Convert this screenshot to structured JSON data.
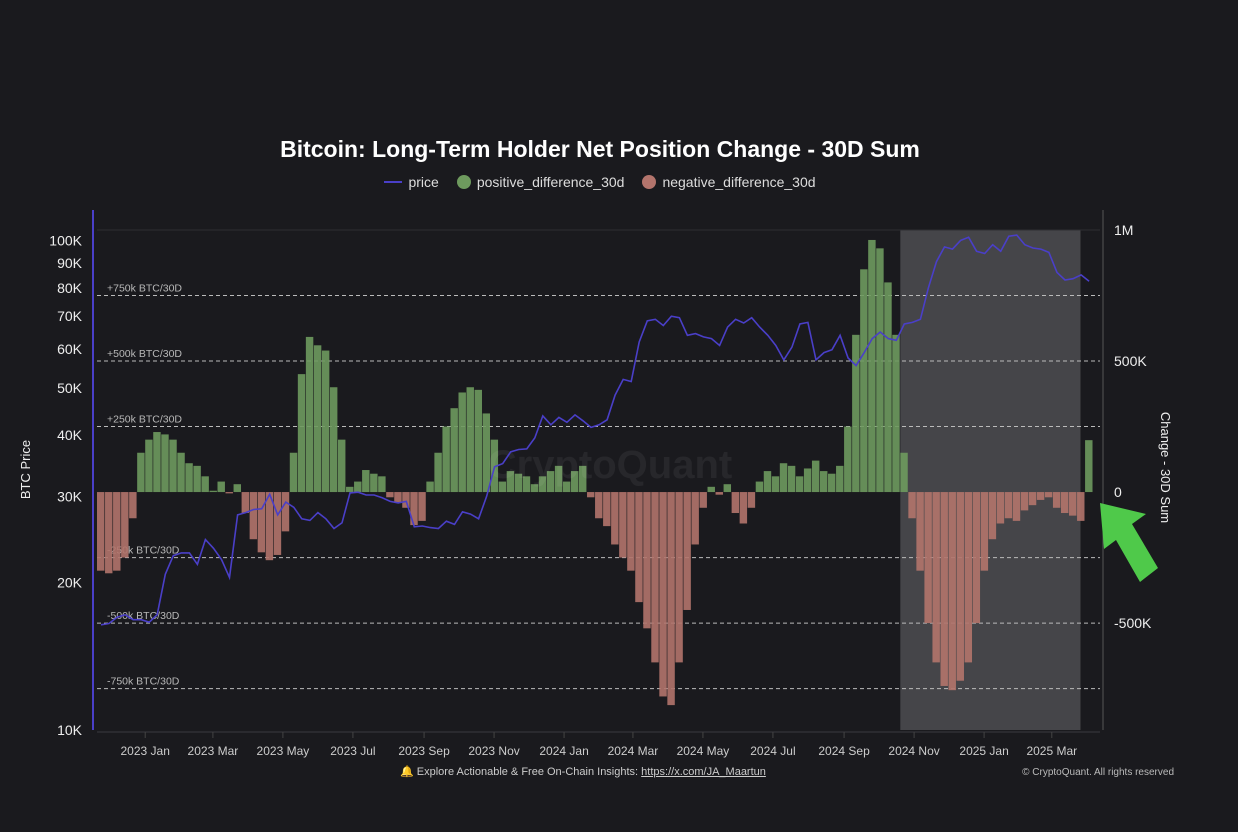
{
  "chart_data": {
    "type": "bar+line",
    "title": "Bitcoin: Long-Term Holder Net Position Change - 30D Sum",
    "legend": [
      {
        "name": "price",
        "color": "#4a3fc8",
        "marker": "line"
      },
      {
        "name": "positive_difference_30d",
        "color": "#6e9a5e",
        "marker": "dot"
      },
      {
        "name": "negative_difference_30d",
        "color": "#b3746c",
        "marker": "dot"
      }
    ],
    "legend_placement": "top-center",
    "ylabel_left": "BTC Price",
    "ylabel_right": "Change - 30D Sum",
    "y_left_scale": "log",
    "ylim_left": [
      10000,
      105000
    ],
    "y_left_ticks": [
      "100K",
      "90K",
      "80K",
      "70K",
      "60K",
      "50K",
      "40K",
      "30K",
      "20K",
      "10K"
    ],
    "y_left_tick_values": [
      100000,
      90000,
      80000,
      70000,
      60000,
      50000,
      40000,
      30000,
      20000,
      10000
    ],
    "ylim_right": [
      -908000,
      1000000
    ],
    "y_right_ticks": [
      "1M",
      "500K",
      "0",
      "-500K"
    ],
    "y_right_tick_values": [
      1000000,
      500000,
      0,
      -500000
    ],
    "xlim": [
      "2022-11-20",
      "2025-04-12"
    ],
    "x_ticks": [
      "2023 Jan",
      "2023 Mar",
      "2023 May",
      "2023 Jul",
      "2023 Sep",
      "2023 Nov",
      "2024 Jan",
      "2024 Mar",
      "2024 May",
      "2024 Jul",
      "2024 Sep",
      "2024 Nov",
      "2025 Jan",
      "2025 Mar"
    ],
    "x_tick_dates": [
      "2023-01-01",
      "2023-03-01",
      "2023-05-01",
      "2023-07-01",
      "2023-09-01",
      "2023-11-01",
      "2024-01-01",
      "2024-03-01",
      "2024-05-01",
      "2024-07-01",
      "2024-09-01",
      "2024-11-01",
      "2025-01-01",
      "2025-03-01"
    ],
    "reference_lines": [
      {
        "value": 750000,
        "label": "+750k BTC/30D"
      },
      {
        "value": 500000,
        "label": "+500k BTC/30D"
      },
      {
        "value": 250000,
        "label": "+250k BTC/30D"
      },
      {
        "value": -250000,
        "label": "-250k BTC/30D"
      },
      {
        "value": -500000,
        "label": "-500k BTC/30D"
      },
      {
        "value": -750000,
        "label": "-750k BTC/30D"
      }
    ],
    "highlight": {
      "start": "2024-10-20",
      "end": "2025-03-26",
      "color": "#4a4a4e"
    },
    "grid": false,
    "dates": [
      "2022-11-20",
      "2022-11-27",
      "2022-12-04",
      "2022-12-11",
      "2022-12-18",
      "2022-12-25",
      "2023-01-01",
      "2023-01-08",
      "2023-01-15",
      "2023-01-22",
      "2023-01-29",
      "2023-02-05",
      "2023-02-12",
      "2023-02-19",
      "2023-02-26",
      "2023-03-05",
      "2023-03-12",
      "2023-03-19",
      "2023-03-26",
      "2023-04-02",
      "2023-04-09",
      "2023-04-16",
      "2023-04-23",
      "2023-04-30",
      "2023-05-07",
      "2023-05-14",
      "2023-05-21",
      "2023-05-28",
      "2023-06-04",
      "2023-06-11",
      "2023-06-18",
      "2023-06-25",
      "2023-07-02",
      "2023-07-09",
      "2023-07-16",
      "2023-07-23",
      "2023-07-30",
      "2023-08-06",
      "2023-08-13",
      "2023-08-20",
      "2023-08-27",
      "2023-09-03",
      "2023-09-10",
      "2023-09-17",
      "2023-09-24",
      "2023-10-01",
      "2023-10-08",
      "2023-10-15",
      "2023-10-22",
      "2023-10-29",
      "2023-11-05",
      "2023-11-12",
      "2023-11-19",
      "2023-11-26",
      "2023-12-03",
      "2023-12-10",
      "2023-12-17",
      "2023-12-24",
      "2023-12-31",
      "2024-01-07",
      "2024-01-14",
      "2024-01-21",
      "2024-01-28",
      "2024-02-04",
      "2024-02-11",
      "2024-02-18",
      "2024-02-25",
      "2024-03-03",
      "2024-03-10",
      "2024-03-17",
      "2024-03-24",
      "2024-03-31",
      "2024-04-07",
      "2024-04-14",
      "2024-04-21",
      "2024-04-28",
      "2024-05-05",
      "2024-05-12",
      "2024-05-19",
      "2024-05-26",
      "2024-06-02",
      "2024-06-09",
      "2024-06-16",
      "2024-06-23",
      "2024-06-30",
      "2024-07-07",
      "2024-07-14",
      "2024-07-21",
      "2024-07-28",
      "2024-08-04",
      "2024-08-11",
      "2024-08-18",
      "2024-08-25",
      "2024-09-01",
      "2024-09-08",
      "2024-09-15",
      "2024-09-22",
      "2024-09-29",
      "2024-10-06",
      "2024-10-13",
      "2024-10-20",
      "2024-10-27",
      "2024-11-03",
      "2024-11-10",
      "2024-11-17",
      "2024-11-24",
      "2024-12-01",
      "2024-12-08",
      "2024-12-15",
      "2024-12-22",
      "2024-12-29",
      "2025-01-05",
      "2025-01-12",
      "2025-01-19",
      "2025-01-26",
      "2025-02-02",
      "2025-02-09",
      "2025-02-16",
      "2025-02-23",
      "2025-03-02",
      "2025-03-09",
      "2025-03-16",
      "2025-03-23",
      "2025-03-30"
    ],
    "net_change_30d": [
      -300000,
      -310000,
      -300000,
      -250000,
      -100000,
      150000,
      200000,
      229000,
      220000,
      200000,
      150000,
      110000,
      100000,
      60000,
      5000,
      40000,
      -5000,
      30000,
      -80000,
      -180000,
      -230000,
      -260000,
      -240000,
      -150000,
      150000,
      450000,
      592000,
      560000,
      540000,
      400000,
      200000,
      20000,
      40000,
      84000,
      70000,
      60000,
      -20000,
      -40000,
      -60000,
      -126000,
      -110000,
      40000,
      150000,
      250000,
      320000,
      380000,
      400000,
      390000,
      300000,
      200000,
      40000,
      80000,
      70000,
      60000,
      30000,
      60000,
      80000,
      100000,
      40000,
      80000,
      100000,
      -20000,
      -100000,
      -130000,
      -200000,
      -250000,
      -300000,
      -420000,
      -520000,
      -650000,
      -780000,
      -813000,
      -650000,
      -450000,
      -200000,
      -60000,
      20000,
      -10000,
      30000,
      -80000,
      -120000,
      -60000,
      40000,
      80000,
      60000,
      110000,
      100000,
      60000,
      90000,
      120000,
      80000,
      70000,
      100000,
      250000,
      600000,
      850000,
      962000,
      930000,
      800000,
      600000,
      150000,
      -100000,
      -300000,
      -500000,
      -650000,
      -740000,
      -756000,
      -720000,
      -650000,
      -500000,
      -300000,
      -180000,
      -120000,
      -100000,
      -110000,
      -70000,
      -50000,
      -30000,
      -20000,
      -60000,
      -80000,
      -90000,
      -110000,
      198000
    ],
    "price": [
      16400,
      16500,
      17000,
      17200,
      16800,
      16800,
      16600,
      17200,
      20800,
      22700,
      23000,
      23000,
      21800,
      24500,
      23500,
      22300,
      20500,
      27500,
      27800,
      28200,
      28300,
      30300,
      27500,
      29200,
      28500,
      27000,
      26800,
      27800,
      27000,
      25800,
      26500,
      30500,
      30600,
      30200,
      30200,
      29800,
      29300,
      29100,
      29300,
      26000,
      26100,
      25900,
      25800,
      26700,
      26300,
      27900,
      27600,
      27000,
      30000,
      34500,
      35000,
      37000,
      37400,
      37500,
      39500,
      43800,
      42000,
      43500,
      42500,
      44000,
      42800,
      41500,
      42000,
      43000,
      48300,
      52000,
      51500,
      62000,
      68500,
      69000,
      67000,
      70000,
      69500,
      64000,
      64500,
      63500,
      63000,
      61000,
      66500,
      69000,
      67800,
      69500,
      66500,
      64000,
      61000,
      57000,
      60500,
      67500,
      68000,
      57000,
      59000,
      59800,
      64000,
      57500,
      55500,
      59000,
      63000,
      65000,
      63000,
      62500,
      67500,
      68000,
      69000,
      80000,
      90500,
      97000,
      96000,
      100000,
      101500,
      95000,
      94000,
      98000,
      95000,
      102000,
      102500,
      98000,
      96500,
      96000,
      94500,
      86000,
      83000,
      83500,
      85000,
      82500
    ]
  },
  "watermark": "CryptoQuant",
  "footer": {
    "icon": "bell-icon",
    "text": "Explore Actionable & Free On-Chain Insights: ",
    "link": "https://x.com/JA_Maartun",
    "copyright": "© CryptoQuant. All rights reserved"
  },
  "annotation": {
    "icon": "arrow-up-left-icon",
    "color": "#4fc94a"
  }
}
